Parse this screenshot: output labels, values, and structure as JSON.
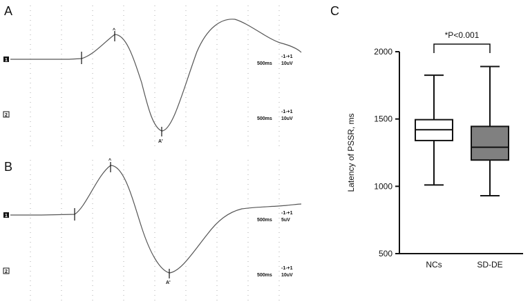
{
  "chart_data": [
    {
      "type": "line",
      "panel": "A",
      "channels": [
        {
          "marker": "1",
          "scale_time": "500ms",
          "scale_range": "-1-+1",
          "scale_amp": "10uV"
        },
        {
          "marker": "2",
          "scale_time": "500ms",
          "scale_range": "-1-+1",
          "scale_amp": "10uV"
        }
      ],
      "cursor_labels": [
        "^",
        "A'"
      ]
    },
    {
      "type": "line",
      "panel": "B",
      "channels": [
        {
          "marker": "1",
          "scale_time": "500ms",
          "scale_range": "-1-+1",
          "scale_amp": "5uV"
        },
        {
          "marker": "2",
          "scale_time": "500ms",
          "scale_range": "-1-+1",
          "scale_amp": "10uV"
        }
      ],
      "cursor_labels": [
        "^",
        "A'"
      ]
    },
    {
      "type": "box",
      "panel": "C",
      "ylabel": "Latency of PSSR, ms",
      "ylim": [
        500,
        2000
      ],
      "yticks": [
        500,
        1000,
        1500,
        2000
      ],
      "categories": [
        "NCs",
        "SD-DE"
      ],
      "boxes": [
        {
          "category": "NCs",
          "min": 1010,
          "q1": 1340,
          "median": 1420,
          "q3": 1495,
          "max": 1825,
          "fill": "#ffffff"
        },
        {
          "category": "SD-DE",
          "min": 930,
          "q1": 1195,
          "median": 1290,
          "q3": 1445,
          "max": 1890,
          "fill": "#808080"
        }
      ],
      "annotation": "*P<0.001"
    }
  ]
}
